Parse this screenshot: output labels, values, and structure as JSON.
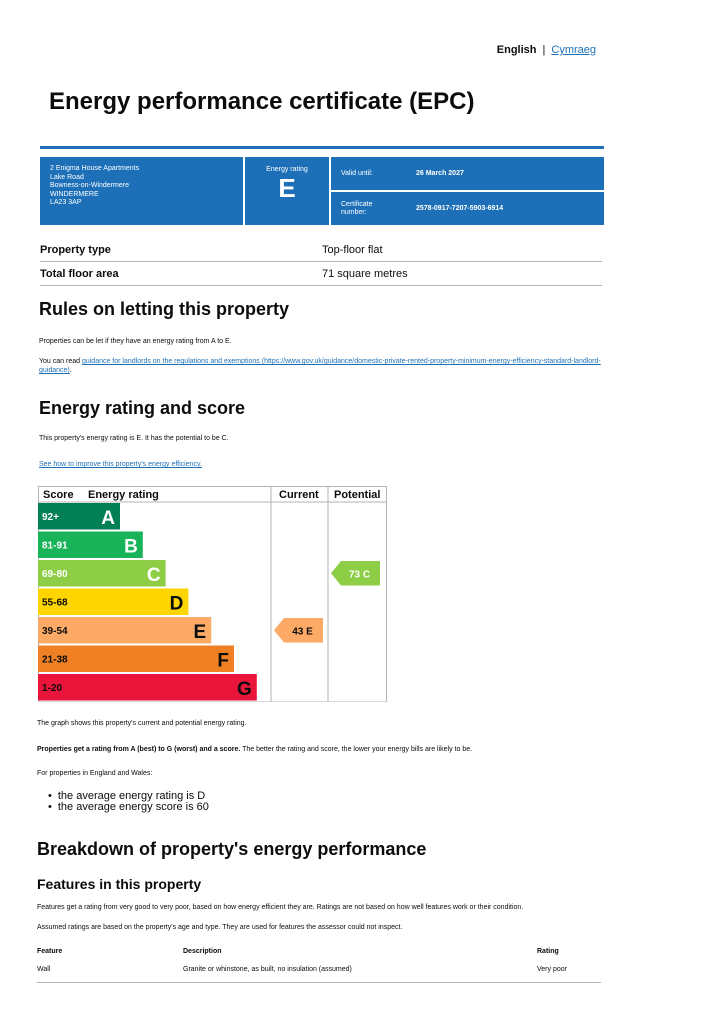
{
  "lang": {
    "english": "English",
    "separator": "|",
    "welsh": "Cymraeg"
  },
  "title": "Energy performance certificate (EPC)",
  "summary": {
    "address": [
      "2 Enigma House Apartments",
      "Lake Road",
      "Bowness-on-Windermere",
      "WINDERMERE",
      "LA23 3AP"
    ],
    "rating_label": "Energy rating",
    "rating": "E",
    "valid_until_label": "Valid until:",
    "valid_until": "26 March 2027",
    "cert_label_1": "Certificate",
    "cert_label_2": "number:",
    "cert_number": "2578-0917-7207-5903-6914"
  },
  "property": [
    {
      "key": "Property type",
      "value": "Top-floor flat"
    },
    {
      "key": "Total floor area",
      "value": "71 square metres"
    }
  ],
  "rules": {
    "heading": "Rules on letting this property",
    "p1": "Properties can be let if they have an energy rating from A to E.",
    "p2_prefix": "You can read ",
    "p2_link": "guidance for landlords on the regulations and exemptions (https://www.gov.uk/guidance/domestic-private-rented-property-minimum-energy-efficiency-standard-landlord-guidance)",
    "p2_suffix": "."
  },
  "score": {
    "heading": "Energy rating and score",
    "p1": "This property's energy rating is E. It has the potential to be C.",
    "link": "See how to improve this property's energy efficiency."
  },
  "chart_data": {
    "type": "bar",
    "headers": {
      "score": "Score",
      "rating": "Energy rating",
      "current": "Current",
      "potential": "Potential"
    },
    "bands": [
      {
        "range": "92+",
        "letter": "A",
        "color": "#008054"
      },
      {
        "range": "81-91",
        "letter": "B",
        "color": "#19b459"
      },
      {
        "range": "69-80",
        "letter": "C",
        "color": "#8dce46"
      },
      {
        "range": "55-68",
        "letter": "D",
        "color": "#ffd500"
      },
      {
        "range": "39-54",
        "letter": "E",
        "color": "#fcaa65"
      },
      {
        "range": "21-38",
        "letter": "F",
        "color": "#ef8023"
      },
      {
        "range": "1-20",
        "letter": "G",
        "color": "#e9153b"
      }
    ],
    "current": {
      "score": 43,
      "letter": "E",
      "band_index": 4,
      "label": "43 E"
    },
    "potential": {
      "score": 73,
      "letter": "C",
      "band_index": 2,
      "label": "73 C"
    }
  },
  "after_chart": {
    "p1": "The graph shows this property's current and potential energy rating.",
    "p2_bold": "Properties get a rating from A (best) to G (worst) and a score.",
    "p2_rest": " The better the rating and score, the lower your energy bills are likely to be.",
    "p3": "For properties in England and Wales:",
    "avg1": "the average energy rating is D",
    "avg2": "the average energy score is 60"
  },
  "breakdown": {
    "heading": "Breakdown of property's energy performance",
    "sub": "Features in this property",
    "p1": "Features get a rating from very good to very poor, based on how energy efficient they are. Ratings are not based on how well features work or their condition.",
    "p2": "Assumed ratings are based on the property's age and type. They are used for features the assessor could not inspect.",
    "col_feature": "Feature",
    "col_description": "Description",
    "col_rating": "Rating",
    "rows": [
      {
        "feature": "Wall",
        "description": "Granite or whinstone, as built, no insulation (assumed)",
        "rating": "Very poor"
      }
    ]
  }
}
